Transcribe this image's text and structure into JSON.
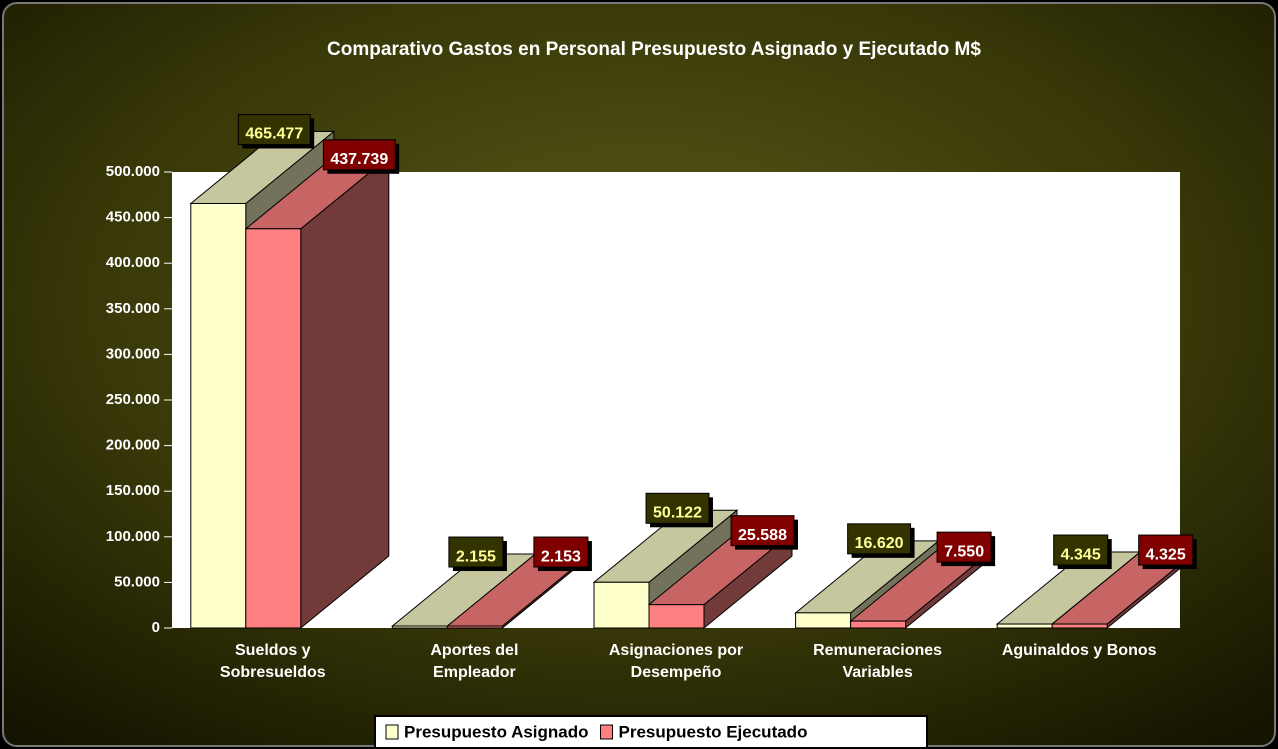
{
  "chart_data": {
    "type": "bar3d",
    "title": "Comparativo Gastos en Personal Presupuesto Asignado y Ejecutado M$",
    "categories": [
      "Sueldos y Sobresueldos",
      "Aportes del Empleador",
      "Asignaciones por Desempeño",
      "Remuneraciones Variables",
      "Aguinaldos y Bonos"
    ],
    "series": [
      {
        "name": "Presupuesto Asignado",
        "color": "#ffffcc",
        "label_color": "#333300",
        "values": [
          465477,
          2155,
          50122,
          16620,
          4345
        ],
        "value_labels": [
          "465.477",
          "2.155",
          "50.122",
          "16.620",
          "4.345"
        ]
      },
      {
        "name": "Presupuesto Ejecutado",
        "color": "#ff8080",
        "label_color": "#800000",
        "values": [
          437739,
          2153,
          25588,
          7550,
          4325
        ],
        "value_labels": [
          "437.739",
          "2.153",
          "25.588",
          "7.550",
          "4.325"
        ]
      }
    ],
    "ylim": [
      0,
      500000
    ],
    "yticks": [
      0,
      {
        "value": 50000,
        "label": "50.000"
      },
      {
        "value": 100000,
        "label": "100.000"
      },
      {
        "value": 150000,
        "label": "150.000"
      },
      {
        "value": 200000,
        "label": "200.000"
      },
      {
        "value": 250000,
        "label": "250.000"
      },
      {
        "value": 300000,
        "label": "300.000"
      },
      {
        "value": 350000,
        "label": "350.000"
      },
      {
        "value": 400000,
        "label": "400.000"
      },
      {
        "value": 450000,
        "label": "450.000"
      },
      {
        "value": 500000,
        "label": "500.000"
      }
    ],
    "legend": "bottom"
  }
}
